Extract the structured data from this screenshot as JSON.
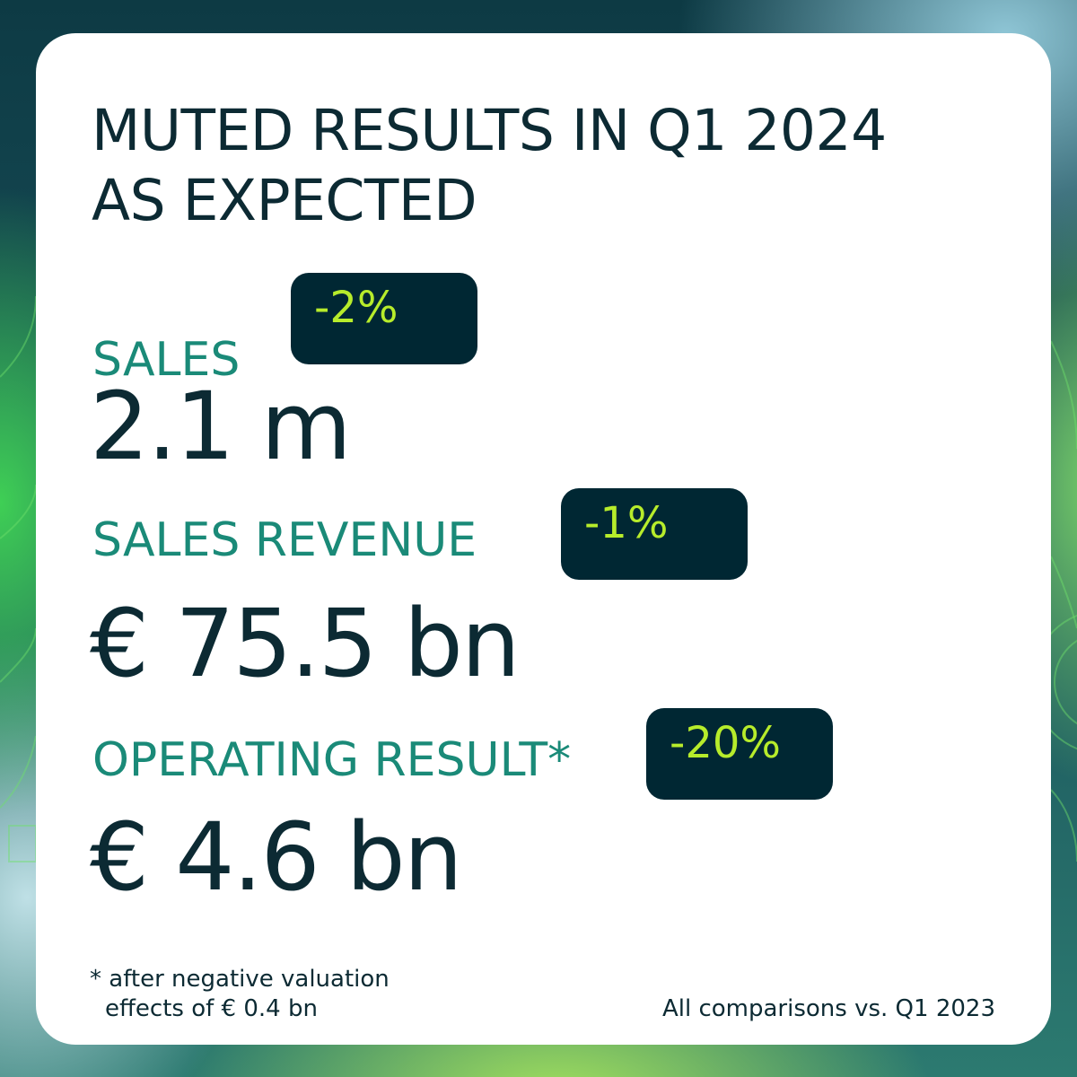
{
  "title": {
    "line1": "MUTED RESULTS IN Q1 2024",
    "line2": "AS EXPECTED"
  },
  "metrics": [
    {
      "label": "SALES",
      "change": "-2%",
      "value": "2.1 m"
    },
    {
      "label": "SALES REVENUE",
      "change": "-1%",
      "value": "€ 75.5 bn"
    },
    {
      "label": "OPERATING RESULT*",
      "change": "-20%",
      "value": "€ 4.6 bn"
    }
  ],
  "footnote": {
    "line1": "* after negative valuation",
    "line2": "effects of € 0.4 bn"
  },
  "comparison_note": "All comparisons vs. Q1 2023",
  "colors": {
    "title_text": "#0c2a33",
    "label_text": "#1a8a78",
    "badge_background": "#002733",
    "badge_text": "#b7ec2b",
    "card_background": "#ffffff"
  }
}
